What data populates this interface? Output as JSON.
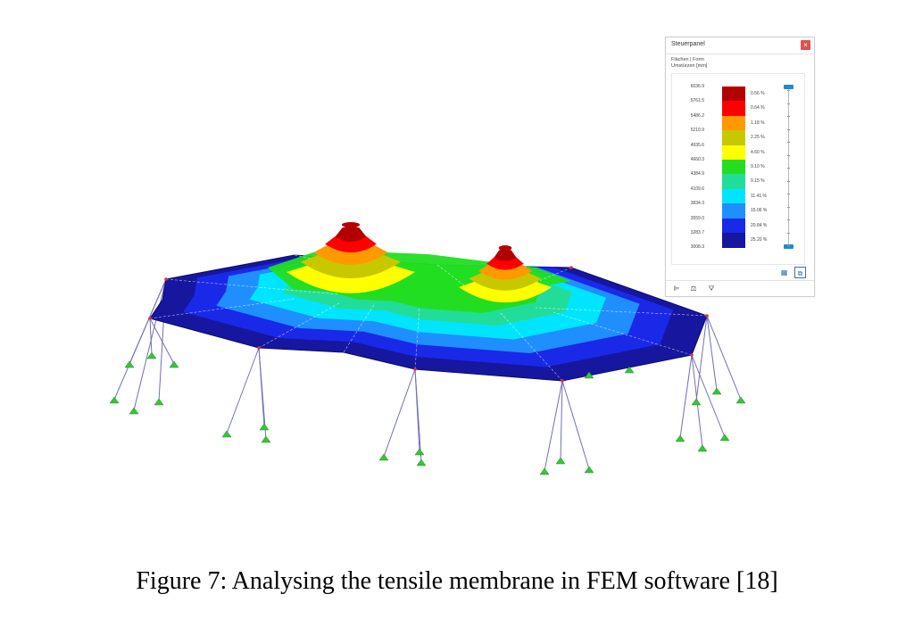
{
  "caption": "Figure 7: Analysing the tensile membrane in FEM software [18]",
  "panel": {
    "title": "Steuerpanel",
    "close_icon": "close-icon",
    "subtitle_1": "Flächen | Form",
    "subtitle_2": "Umstürzen [mm]",
    "legend": {
      "values": [
        "6036.9",
        "5761.5",
        "5486.2",
        "5210.9",
        "4935.6",
        "4660.3",
        "4384.9",
        "4109.6",
        "3834.3",
        "3559.0",
        "3283.7",
        "3008.3"
      ],
      "percents": [
        "0.56 %",
        "0.64 %",
        "1.18 %",
        "2.25 %",
        "4.60 %",
        "9.10 %",
        "9.15 %",
        "11.41 %",
        "15.06 %",
        "20.84 %",
        "25.20 %"
      ],
      "colors": [
        "#b30000",
        "#ff0000",
        "#ff9900",
        "#c8c800",
        "#ffff00",
        "#22dd22",
        "#22dd99",
        "#00e5ff",
        "#1f8fff",
        "#1a28e8",
        "#16169e"
      ]
    },
    "tools": [
      "table-icon",
      "settings-icon"
    ],
    "tabs": [
      "color-scale-icon",
      "balance-icon",
      "filter-icon"
    ]
  }
}
